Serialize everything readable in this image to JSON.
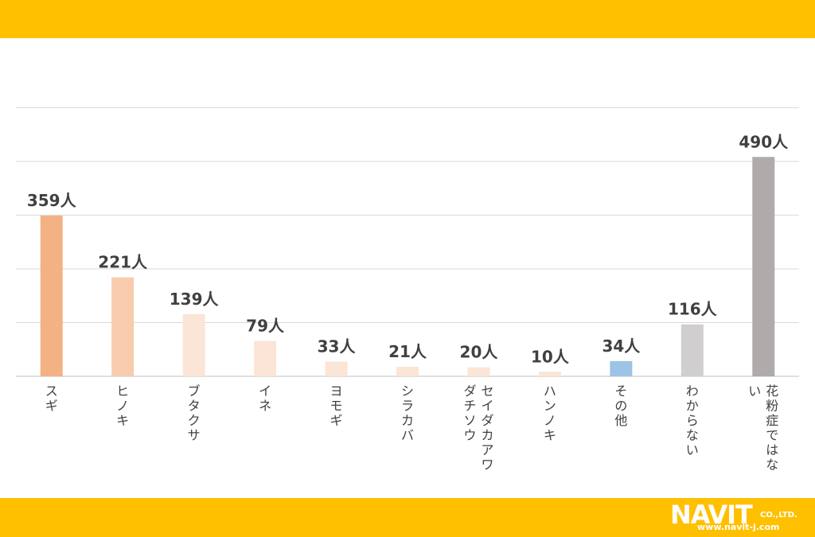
{
  "colors": {
    "band": "#FFC000",
    "grid": "#d9d9d9",
    "axis": "#bfbfbf",
    "label": "#404040",
    "logo": "#ffffff"
  },
  "chart_data": {
    "type": "bar",
    "title": "",
    "xlabel": "",
    "ylabel": "",
    "ylim": [
      0,
      600
    ],
    "grid": true,
    "legend": "none",
    "value_unit": "人",
    "categories": [
      "スギ",
      "ヒノキ",
      "ブタクサ",
      "イネ",
      "ヨモギ",
      "シラカバ",
      "セイダカアワダチソウ",
      "ハンノキ",
      "その他",
      "わからない",
      "花粉症ではない"
    ],
    "values": [
      359,
      221,
      139,
      79,
      33,
      21,
      20,
      10,
      34,
      116,
      490
    ],
    "data_labels": [
      "359人",
      "221人",
      "139人",
      "79人",
      "33人",
      "21人",
      "20人",
      "10人",
      "34人",
      "116人",
      "490人"
    ],
    "bar_colors": [
      "#F4B183",
      "#F8CBAD",
      "#FBE5D6",
      "#FBE5D6",
      "#FBE5D6",
      "#FBE5D6",
      "#FBE5D6",
      "#FBE5D6",
      "#9DC3E6",
      "#D0CECE",
      "#AFABAB"
    ]
  },
  "logo": {
    "main": "NAVIT",
    "suffix": "CO.,LTD.",
    "url": "www.navit-j.com"
  }
}
